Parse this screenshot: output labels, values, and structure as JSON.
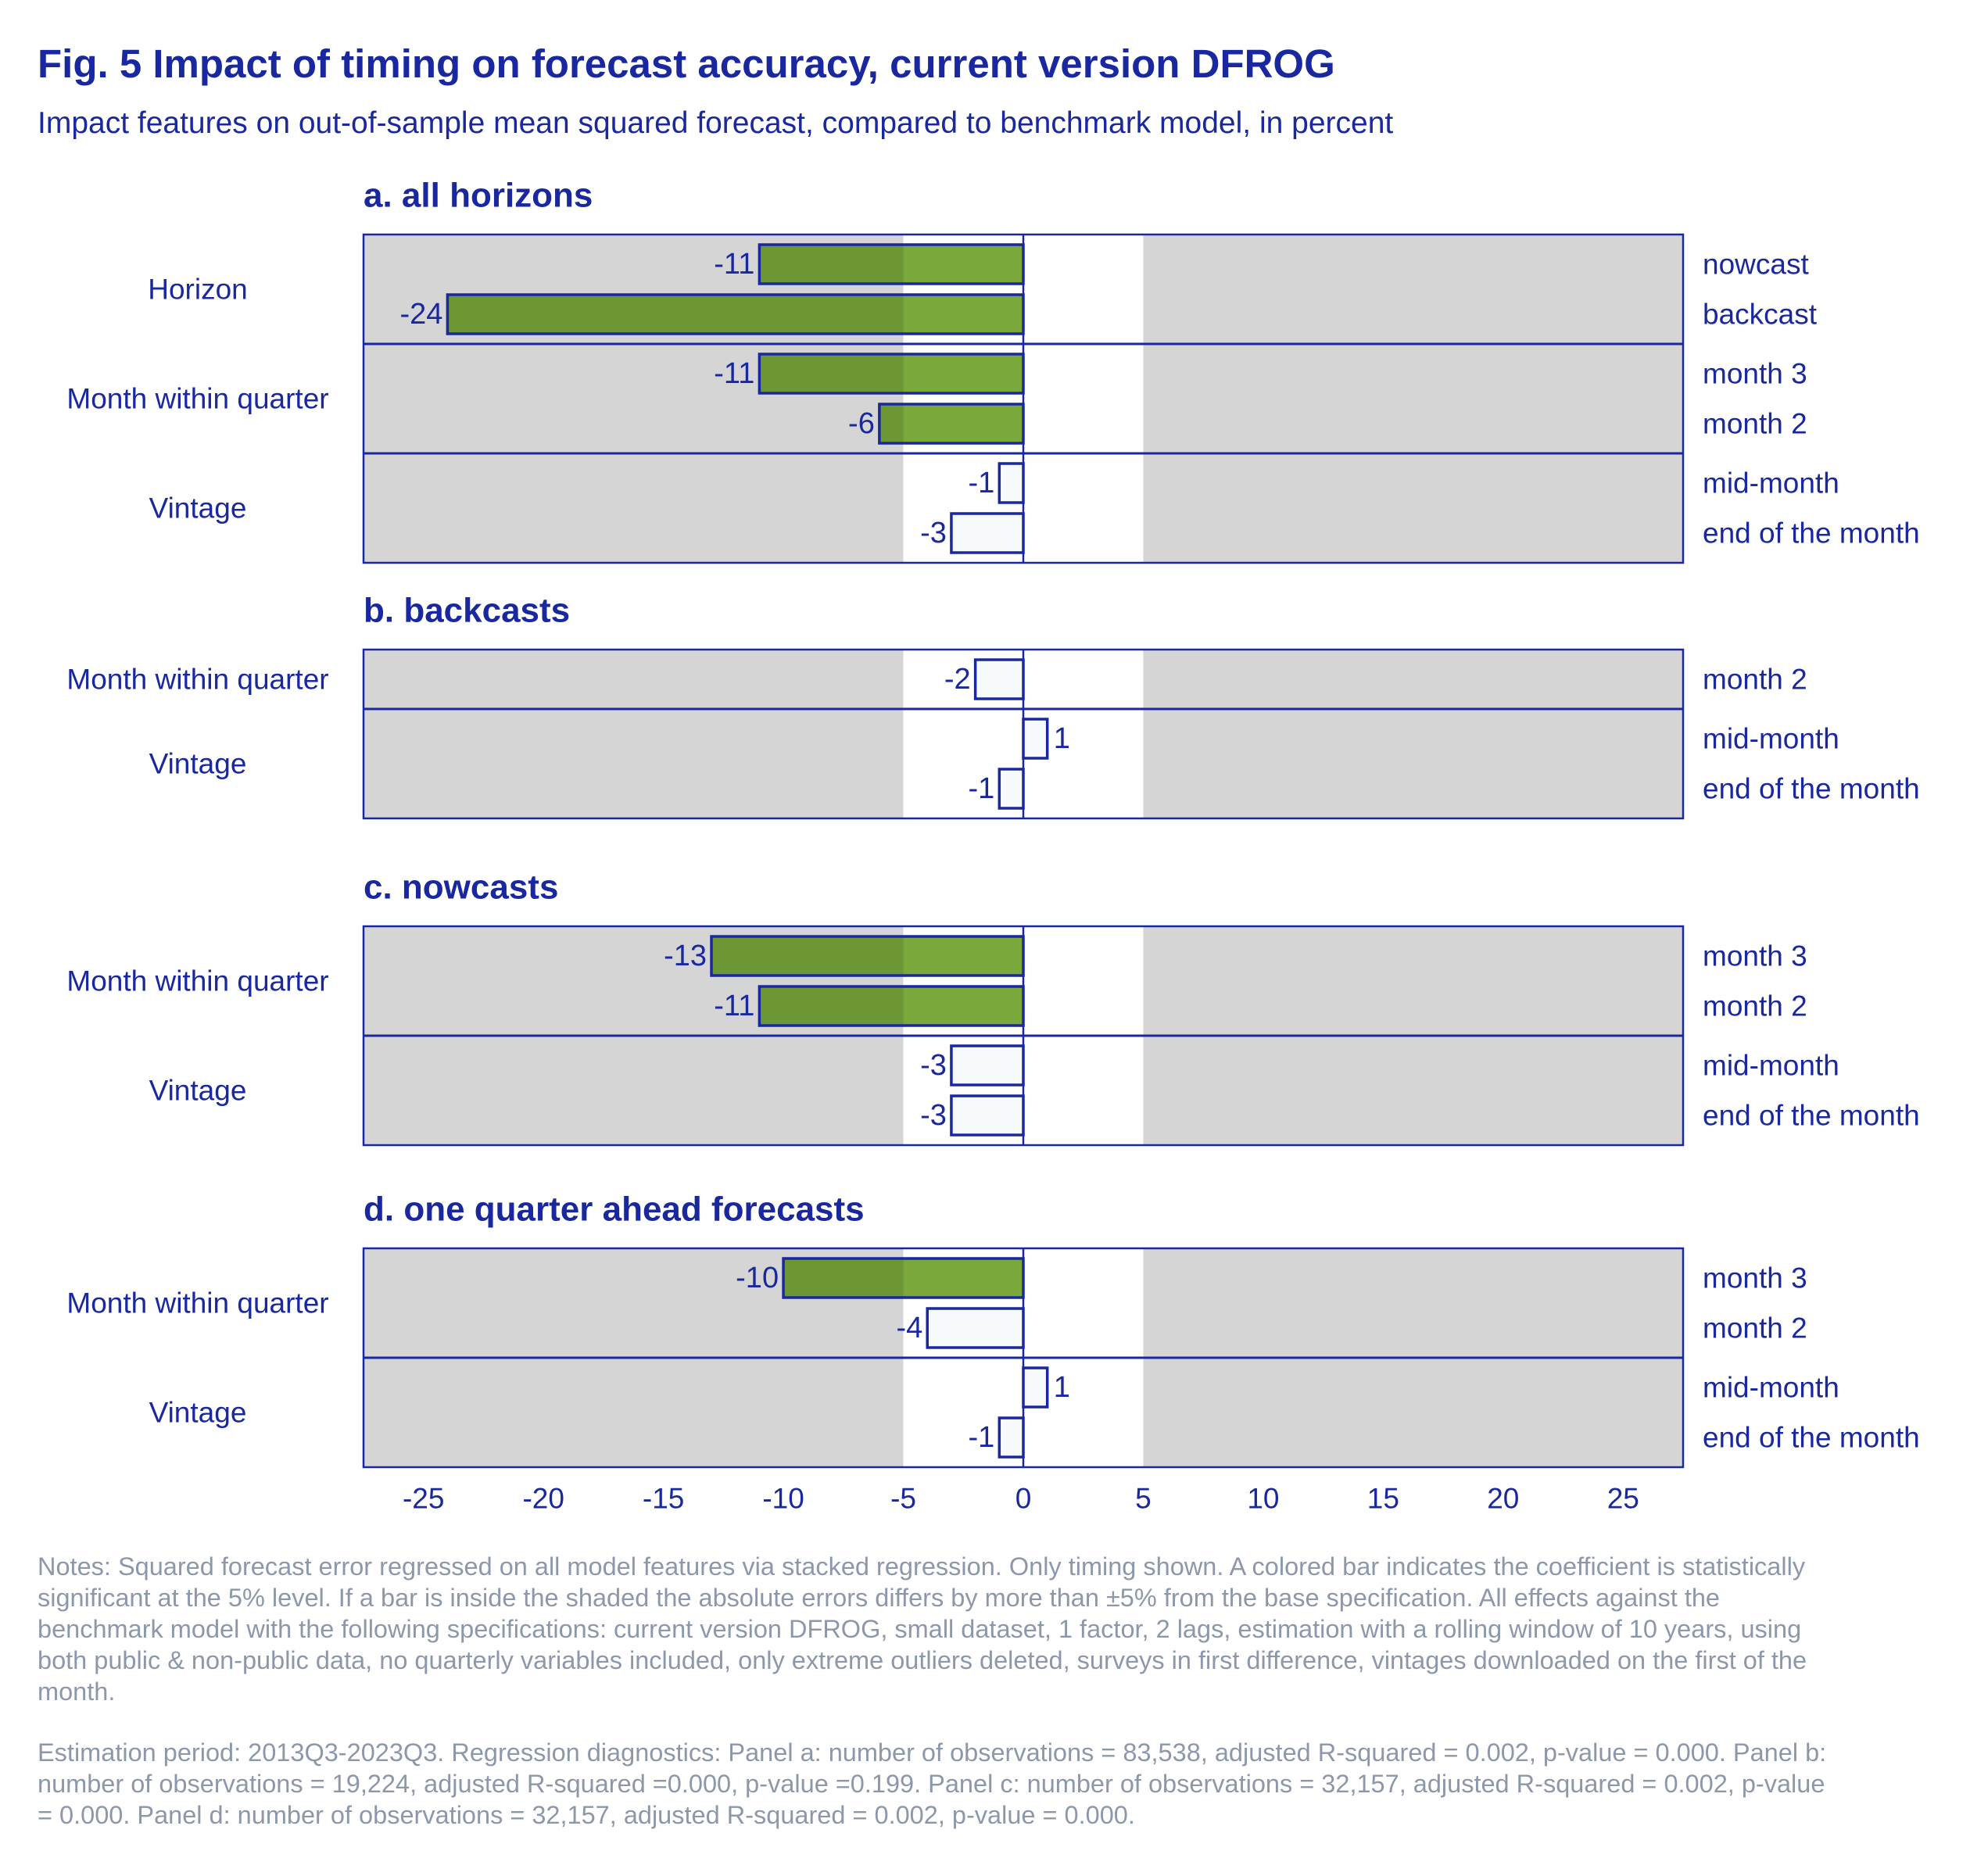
{
  "title": "Fig. 5 Impact of timing on forecast accuracy, current version DFROG",
  "subtitle": "Impact features on out-of-sample mean squared forecast, compared to benchmark model, in percent",
  "colors": {
    "title": "#1a28a0",
    "significant_bar": "#7aa83a",
    "insignificant_bar": "#f7fafb",
    "bar_outline": "#1a28a0",
    "shaded_region": "#d5d5d5",
    "notes": "#8c98aa"
  },
  "chart_data": {
    "type": "bar",
    "orientation": "horizontal",
    "xlim": [
      -27.5,
      27.5
    ],
    "x_ticks": [
      -25,
      -20,
      -15,
      -10,
      -5,
      0,
      5,
      10,
      15,
      20,
      25
    ],
    "x_tick_labels": [
      "-25",
      "-20",
      "-15",
      "-10",
      "-5",
      "0",
      "5",
      "10",
      "15",
      "20",
      "25"
    ],
    "shaded_outside": [
      -5,
      5
    ],
    "grid": false,
    "panels": [
      {
        "title": "a. all horizons",
        "groups": [
          {
            "label": "Horizon",
            "bars": [
              {
                "label": "nowcast",
                "value": -11,
                "value_label": "-11",
                "significant": true
              },
              {
                "label": "backcast",
                "value": -24,
                "value_label": "-24",
                "significant": true
              }
            ]
          },
          {
            "label": "Month within quarter",
            "bars": [
              {
                "label": "month 3",
                "value": -11,
                "value_label": "-11",
                "significant": true
              },
              {
                "label": "month 2",
                "value": -6,
                "value_label": "-6",
                "significant": true
              }
            ]
          },
          {
            "label": "Vintage",
            "bars": [
              {
                "label": "mid-month",
                "value": -1,
                "value_label": "-1",
                "significant": false
              },
              {
                "label": "end of the month",
                "value": -3,
                "value_label": "-3",
                "significant": false
              }
            ]
          }
        ]
      },
      {
        "title": "b. backcasts",
        "groups": [
          {
            "label": "Month within quarter",
            "bars": [
              {
                "label": "month 2",
                "value": -2,
                "value_label": "-2",
                "significant": false
              }
            ]
          },
          {
            "label": "Vintage",
            "bars": [
              {
                "label": "mid-month",
                "value": 1,
                "value_label": "1",
                "significant": false
              },
              {
                "label": "end of the month",
                "value": -1,
                "value_label": "-1",
                "significant": false
              }
            ]
          }
        ]
      },
      {
        "title": "c. nowcasts",
        "groups": [
          {
            "label": "Month within quarter",
            "bars": [
              {
                "label": "month 3",
                "value": -13,
                "value_label": "-13",
                "significant": true
              },
              {
                "label": "month 2",
                "value": -11,
                "value_label": "-11",
                "significant": true
              }
            ]
          },
          {
            "label": "Vintage",
            "bars": [
              {
                "label": "mid-month",
                "value": -3,
                "value_label": "-3",
                "significant": false
              },
              {
                "label": "end of the month",
                "value": -3,
                "value_label": "-3",
                "significant": false
              }
            ]
          }
        ]
      },
      {
        "title": "d. one quarter ahead forecasts",
        "groups": [
          {
            "label": "Month within quarter",
            "bars": [
              {
                "label": "month 3",
                "value": -10,
                "value_label": "-10",
                "significant": true
              },
              {
                "label": "month 2",
                "value": -4,
                "value_label": "-4",
                "significant": false
              }
            ]
          },
          {
            "label": "Vintage",
            "bars": [
              {
                "label": "mid-month",
                "value": 1,
                "value_label": "1",
                "significant": false
              },
              {
                "label": "end of the month",
                "value": -1,
                "value_label": "-1",
                "significant": false
              }
            ]
          }
        ]
      }
    ]
  },
  "notes": [
    "Notes: Squared forecast error regressed on all model features via stacked regression. Only timing shown. A colored bar indicates the coefficient is statistically significant at the 5% level. If a bar is inside the shaded the absolute errors differs by more than ±5% from the base specification. All effects against the benchmark model with the following specifications: current version DFROG, small dataset, 1 factor, 2 lags, estimation with a rolling window of 10 years, using both public & non-public data, no quarterly variables included, only extreme outliers deleted, surveys in first difference, vintages downloaded on the first of the month.",
    "Estimation period: 2013Q3-2023Q3. Regression diagnostics: Panel a: number of observations = 83,538, adjusted R-squared = 0.002, p-value = 0.000. Panel b: number of observations = 19,224, adjusted R-squared =0.000, p-value =0.199. Panel c: number of observations = 32,157, adjusted R-squared = 0.002, p-value = 0.000. Panel d: number of observations = 32,157, adjusted R-squared = 0.002, p-value = 0.000."
  ]
}
